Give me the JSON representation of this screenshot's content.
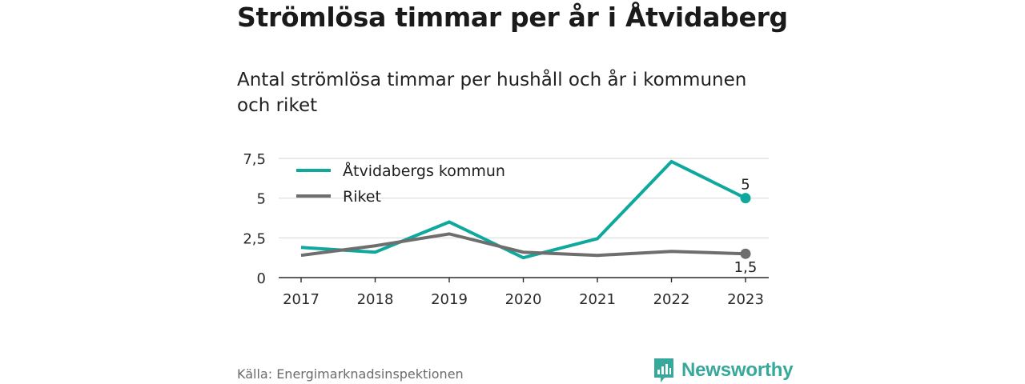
{
  "header": {
    "title": "Strömlösa timmar per år i Åtvidaberg",
    "subtitle": "Antal strömlösa timmar per hushåll och år i kommunen och riket"
  },
  "chart_data": {
    "type": "line",
    "x": [
      "2017",
      "2018",
      "2019",
      "2020",
      "2021",
      "2022",
      "2023"
    ],
    "series": [
      {
        "name": "Åtvidabergs kommun",
        "color": "#0fa89c",
        "values": [
          1.9,
          1.6,
          3.5,
          1.25,
          2.45,
          7.3,
          5
        ],
        "end_label": "5"
      },
      {
        "name": "Riket",
        "color": "#6e6e6e",
        "values": [
          1.4,
          2.0,
          2.75,
          1.6,
          1.4,
          1.65,
          1.5
        ],
        "end_label": "1,5"
      }
    ],
    "y_ticks": [
      {
        "value": 0,
        "label": "0"
      },
      {
        "value": 2.5,
        "label": "2,5"
      },
      {
        "value": 5,
        "label": "5"
      },
      {
        "value": 7.5,
        "label": "7,5"
      }
    ],
    "ylim": [
      0,
      7.5
    ],
    "grid": true,
    "legend": "top-left",
    "xlabel": "",
    "ylabel": ""
  },
  "footer": {
    "source": "Källa: Energimarknadsinspektionen",
    "brand": "Newsworthy",
    "brand_color": "#37a99a",
    "brand_icon": "bar-chart-speech-bubble-icon"
  }
}
